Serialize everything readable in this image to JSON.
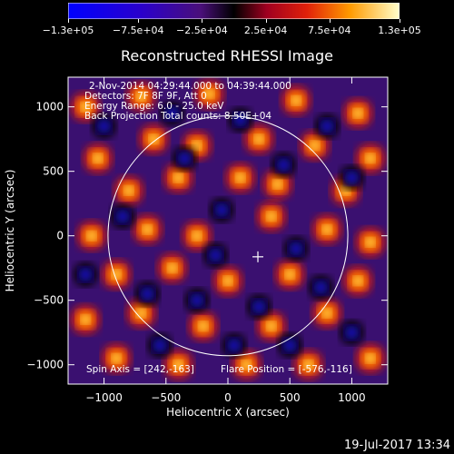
{
  "chart_data": {
    "type": "heatmap",
    "title": "Reconstructed RHESSI Image",
    "xlabel": "Heliocentric X (arcsec)",
    "ylabel": "Heliocentric Y (arcsec)",
    "xlim": [
      -1290,
      1290
    ],
    "ylim": [
      -1150,
      1230
    ],
    "xticks": [
      -1000,
      -500,
      0,
      500,
      1000
    ],
    "yticks": [
      -1000,
      -500,
      0,
      500,
      1000
    ],
    "xtick_labels": [
      "−1000",
      "−500",
      "0",
      "500",
      "1000"
    ],
    "ytick_labels": [
      "−1000",
      "−500",
      "0",
      "500",
      "1000"
    ],
    "colorbar": {
      "range": [
        -130000,
        130000
      ],
      "tick_labels": [
        "−1.3e+05",
        "−7.5e+04",
        "−2.5e+04",
        "2.5e+04",
        "7.5e+04",
        "1.3e+05"
      ],
      "tick_values": [
        -130000,
        -75000,
        -25000,
        25000,
        75000,
        130000
      ]
    },
    "solar_disk_radius": 968,
    "flare_position": [
      -576,
      -116
    ],
    "cross_marker": [
      242,
      -163
    ],
    "info_lines": [
      "2-Nov-2014 04:29:44.000 to 04:39:44.000",
      "Detectors: 7F 8F 9F, Att 0",
      "Energy Range: 6.0 - 25.0 keV",
      "Back Projection    Total counts: 8.50E+04"
    ],
    "footer": {
      "spin_axis": "Spin Axis = [242,-163]",
      "flare_position": "Flare Position = [-576,-116]"
    }
  },
  "date_stamp": "19-Jul-2017 13:34",
  "colors": {
    "background": "#000000",
    "foreground": "#ffffff"
  }
}
